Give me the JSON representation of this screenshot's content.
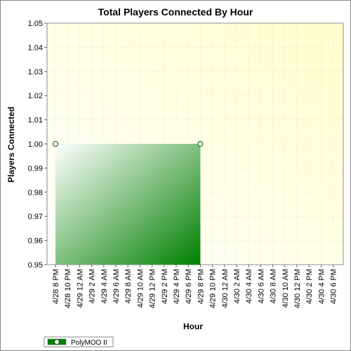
{
  "chart_data": {
    "type": "area",
    "title": "Total Players Connected By Hour",
    "xlabel": "Hour",
    "ylabel": "Players Connected",
    "ylim": [
      0.95,
      1.05
    ],
    "y_ticks": [
      "0.95",
      "0.96",
      "0.97",
      "0.98",
      "0.99",
      "1.00",
      "1.01",
      "1.02",
      "1.03",
      "1.04",
      "1.05"
    ],
    "x_ticks": [
      "4/28 8 PM",
      "4/28 10 PM",
      "4/29 12 AM",
      "4/29 2 AM",
      "4/29 4 AM",
      "4/29 6 AM",
      "4/29 8 AM",
      "4/29 10 AM",
      "4/29 12 PM",
      "4/29 2 PM",
      "4/29 4 PM",
      "4/29 6 PM",
      "4/29 8 PM",
      "4/29 10 PM",
      "4/30 12 AM",
      "4/30 2 AM",
      "4/30 4 AM",
      "4/30 6 AM",
      "4/30 8 AM",
      "4/30 10 AM",
      "4/30 12 PM",
      "4/30 2 PM",
      "4/30 4 PM",
      "4/30 6 PM"
    ],
    "grid": true,
    "legend_position": "bottom-left",
    "series": [
      {
        "name": "PolyMOO II",
        "color": "#008000",
        "points": [
          {
            "x": "4/28 8 PM",
            "y": 1.0
          },
          {
            "x": "4/29 8 PM",
            "y": 1.0
          }
        ]
      }
    ]
  }
}
